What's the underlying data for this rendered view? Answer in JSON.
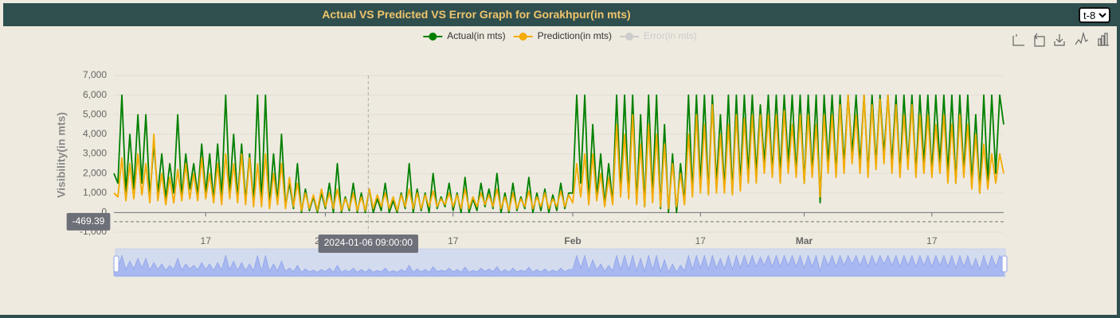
{
  "chart_data": {
    "type": "line",
    "title": "Actual VS Predicted VS Error Graph for Gorakhpur(in mts)",
    "y_label": "Visibility(in mts)",
    "selector": "t-8",
    "x": [
      "2023-12-05 12:00",
      "2023-12-06 00:00",
      "2023-12-06 12:00",
      "2023-12-07 00:00",
      "2023-12-07 12:00",
      "2023-12-08 00:00",
      "2023-12-08 12:00",
      "2023-12-09 00:00",
      "2023-12-09 12:00",
      "2023-12-10 00:00",
      "2023-12-10 12:00",
      "2023-12-11 00:00",
      "2023-12-11 12:00",
      "2023-12-12 00:00",
      "2023-12-12 12:00",
      "2023-12-13 00:00",
      "2023-12-13 12:00",
      "2023-12-14 00:00",
      "2023-12-14 12:00",
      "2023-12-15 00:00",
      "2023-12-15 12:00",
      "2023-12-16 00:00",
      "2023-12-16 12:00",
      "2023-12-17 00:00",
      "2023-12-17 12:00",
      "2023-12-18 00:00",
      "2023-12-18 12:00",
      "2023-12-19 00:00",
      "2023-12-19 12:00",
      "2023-12-20 00:00",
      "2023-12-20 12:00",
      "2023-12-21 00:00",
      "2023-12-21 12:00",
      "2023-12-22 00:00",
      "2023-12-22 12:00",
      "2023-12-23 00:00",
      "2023-12-23 12:00",
      "2023-12-24 00:00",
      "2023-12-24 12:00",
      "2023-12-25 00:00",
      "2023-12-25 12:00",
      "2023-12-26 00:00",
      "2023-12-26 12:00",
      "2023-12-27 00:00",
      "2023-12-27 12:00",
      "2023-12-28 00:00",
      "2023-12-28 12:00",
      "2023-12-29 00:00",
      "2023-12-29 12:00",
      "2023-12-30 00:00",
      "2023-12-30 12:00",
      "2023-12-31 00:00",
      "2023-12-31 12:00",
      "2024-01-01 00:00",
      "2024-01-01 12:00",
      "2024-01-02 00:00",
      "2024-01-02 12:00",
      "2024-01-03 00:00",
      "2024-01-03 12:00",
      "2024-01-04 00:00",
      "2024-01-04 12:00",
      "2024-01-05 00:00",
      "2024-01-05 12:00",
      "2024-01-06 00:00",
      "2024-01-06 12:00",
      "2024-01-07 00:00",
      "2024-01-07 12:00",
      "2024-01-08 00:00",
      "2024-01-08 12:00",
      "2024-01-09 00:00",
      "2024-01-09 12:00",
      "2024-01-10 00:00",
      "2024-01-10 12:00",
      "2024-01-11 00:00",
      "2024-01-11 12:00",
      "2024-01-12 00:00",
      "2024-01-12 12:00",
      "2024-01-13 00:00",
      "2024-01-13 12:00",
      "2024-01-14 00:00",
      "2024-01-14 12:00",
      "2024-01-15 00:00",
      "2024-01-15 12:00",
      "2024-01-16 00:00",
      "2024-01-16 12:00",
      "2024-01-17 00:00",
      "2024-01-17 12:00",
      "2024-01-18 00:00",
      "2024-01-18 12:00",
      "2024-01-19 00:00",
      "2024-01-19 12:00",
      "2024-01-20 00:00",
      "2024-01-20 12:00",
      "2024-01-21 00:00",
      "2024-01-21 12:00",
      "2024-01-22 00:00",
      "2024-01-22 12:00",
      "2024-01-23 00:00",
      "2024-01-23 12:00",
      "2024-01-24 00:00",
      "2024-01-24 12:00",
      "2024-01-25 00:00",
      "2024-01-25 12:00",
      "2024-01-26 00:00",
      "2024-01-26 12:00",
      "2024-01-27 00:00",
      "2024-01-27 12:00",
      "2024-01-28 00:00",
      "2024-01-28 12:00",
      "2024-01-29 00:00",
      "2024-01-29 12:00",
      "2024-01-30 00:00",
      "2024-01-30 12:00",
      "2024-01-31 00:00",
      "2024-01-31 12:00",
      "2024-02-01 00:00",
      "2024-02-01 12:00",
      "2024-02-02 00:00",
      "2024-02-02 12:00",
      "2024-02-03 00:00",
      "2024-02-03 12:00",
      "2024-02-04 00:00",
      "2024-02-04 12:00",
      "2024-02-05 00:00",
      "2024-02-05 12:00",
      "2024-02-06 00:00",
      "2024-02-06 12:00",
      "2024-02-07 00:00",
      "2024-02-07 12:00",
      "2024-02-08 00:00",
      "2024-02-08 12:00",
      "2024-02-09 00:00",
      "2024-02-09 12:00",
      "2024-02-10 00:00",
      "2024-02-10 12:00",
      "2024-02-11 00:00",
      "2024-02-11 12:00",
      "2024-02-12 00:00",
      "2024-02-12 12:00",
      "2024-02-13 00:00",
      "2024-02-13 12:00",
      "2024-02-14 00:00",
      "2024-02-14 12:00",
      "2024-02-15 00:00",
      "2024-02-15 12:00",
      "2024-02-16 00:00",
      "2024-02-16 12:00",
      "2024-02-17 00:00",
      "2024-02-17 12:00",
      "2024-02-18 00:00",
      "2024-02-18 12:00",
      "2024-02-19 00:00",
      "2024-02-19 12:00",
      "2024-02-20 00:00",
      "2024-02-20 12:00",
      "2024-02-21 00:00",
      "2024-02-21 12:00",
      "2024-02-22 00:00",
      "2024-02-22 12:00",
      "2024-02-23 00:00",
      "2024-02-23 12:00",
      "2024-02-24 00:00",
      "2024-02-24 12:00",
      "2024-02-25 00:00",
      "2024-02-25 12:00",
      "2024-02-26 00:00",
      "2024-02-26 12:00",
      "2024-02-27 00:00",
      "2024-02-27 12:00",
      "2024-02-28 00:00",
      "2024-02-28 12:00",
      "2024-02-29 00:00",
      "2024-02-29 12:00",
      "2024-03-01 00:00",
      "2024-03-01 12:00",
      "2024-03-02 00:00",
      "2024-03-02 12:00",
      "2024-03-03 00:00",
      "2024-03-03 12:00",
      "2024-03-04 00:00",
      "2024-03-04 12:00",
      "2024-03-05 00:00",
      "2024-03-05 12:00",
      "2024-03-06 00:00",
      "2024-03-06 12:00",
      "2024-03-07 00:00",
      "2024-03-07 12:00",
      "2024-03-08 00:00",
      "2024-03-08 12:00",
      "2024-03-09 00:00",
      "2024-03-09 12:00",
      "2024-03-10 00:00",
      "2024-03-10 12:00",
      "2024-03-11 00:00",
      "2024-03-11 12:00",
      "2024-03-12 00:00",
      "2024-03-12 12:00",
      "2024-03-13 00:00",
      "2024-03-13 12:00",
      "2024-03-14 00:00",
      "2024-03-14 12:00",
      "2024-03-15 00:00",
      "2024-03-15 12:00",
      "2024-03-16 00:00",
      "2024-03-16 12:00",
      "2024-03-17 00:00",
      "2024-03-17 12:00",
      "2024-03-18 00:00",
      "2024-03-18 12:00",
      "2024-03-19 00:00",
      "2024-03-19 12:00",
      "2024-03-20 00:00",
      "2024-03-20 12:00",
      "2024-03-21 00:00",
      "2024-03-21 12:00",
      "2024-03-22 00:00",
      "2024-03-22 12:00",
      "2024-03-23 00:00",
      "2024-03-23 12:00",
      "2024-03-24 00:00",
      "2024-03-24 12:00",
      "2024-03-25 00:00",
      "2024-03-25 12:00",
      "2024-03-26 00:00"
    ],
    "series": [
      {
        "name": "Actual(in mts)",
        "color": "#008000",
        "values": [
          2000,
          1500,
          6000,
          1000,
          4000,
          1200,
          5000,
          1500,
          5000,
          800,
          3500,
          1000,
          3000,
          700,
          2500,
          1000,
          5000,
          800,
          3000,
          1200,
          2500,
          900,
          3500,
          1000,
          3000,
          600,
          3500,
          800,
          6000,
          1000,
          4000,
          700,
          3500,
          600,
          3000,
          500,
          6000,
          400,
          6000,
          300,
          3000,
          500,
          4000,
          300,
          1500,
          200,
          2500,
          0,
          1200,
          100,
          800,
          0,
          1000,
          200,
          1500,
          0,
          2500,
          0,
          800,
          100,
          1500,
          0,
          1000,
          0,
          1200,
          0,
          700,
          100,
          1500,
          0,
          600,
          0,
          1000,
          200,
          2500,
          0,
          1200,
          100,
          1000,
          0,
          2000,
          200,
          800,
          300,
          1500,
          100,
          1000,
          0,
          1800,
          0,
          700,
          100,
          1500,
          300,
          1200,
          200,
          2000,
          0,
          1000,
          0,
          1500,
          100,
          800,
          200,
          1800,
          0,
          1000,
          100,
          1200,
          0,
          900,
          100,
          1500,
          200,
          1000,
          1000,
          6000,
          1500,
          6000,
          500,
          4500,
          800,
          3000,
          400,
          2500,
          500,
          6000,
          1000,
          6000,
          800,
          6000,
          500,
          5000,
          300,
          6000,
          800,
          6000,
          200,
          4500,
          0,
          3000,
          0,
          2500,
          500,
          6000,
          1000,
          6000,
          1500,
          6000,
          1000,
          6000,
          1500,
          5000,
          1200,
          6000,
          1000,
          6000,
          1500,
          6000,
          2000,
          6000,
          2000,
          5500,
          2500,
          6000,
          2000,
          6000,
          2000,
          6000,
          2500,
          6000,
          2000,
          6000,
          1500,
          6000,
          2000,
          6000,
          500,
          6000,
          2500,
          6000,
          2000,
          6000,
          2500,
          6000,
          3000,
          6000,
          2500,
          6000,
          2000,
          6000,
          2500,
          6000,
          3000,
          6000,
          2500,
          6000,
          2000,
          6000,
          2500,
          6000,
          2000,
          6000,
          2500,
          6000,
          2000,
          6000,
          2500,
          6000,
          2000,
          6000,
          1500,
          6000,
          2000,
          6000,
          1500,
          5000,
          1000,
          6000,
          1500,
          6000,
          2000,
          6000,
          4500
        ]
      },
      {
        "name": "Prediction(in mts)",
        "color": "#f5ab00",
        "values": [
          1000,
          800,
          2800,
          600,
          2500,
          700,
          3000,
          900,
          2500,
          500,
          4000,
          600,
          2000,
          400,
          1800,
          500,
          2200,
          600,
          2500,
          700,
          2000,
          600,
          2800,
          700,
          2000,
          500,
          2500,
          400,
          3000,
          700,
          2500,
          500,
          3000,
          400,
          2800,
          300,
          2500,
          300,
          3000,
          200,
          2000,
          400,
          2500,
          200,
          1800,
          300,
          1500,
          100,
          1000,
          200,
          900,
          100,
          1200,
          300,
          1000,
          200,
          1200,
          100,
          700,
          200,
          1000,
          100,
          800,
          100,
          1200,
          200,
          900,
          300,
          1000,
          200,
          800,
          100,
          900,
          300,
          1200,
          200,
          1000,
          200,
          900,
          300,
          1100,
          300,
          700,
          400,
          1000,
          300,
          900,
          200,
          1200,
          200,
          800,
          300,
          1000,
          400,
          900,
          300,
          1200,
          200,
          800,
          100,
          1000,
          200,
          700,
          300,
          1100,
          200,
          800,
          300,
          1000,
          200,
          700,
          300,
          1100,
          300,
          900,
          500,
          2500,
          800,
          3000,
          400,
          3000,
          600,
          2000,
          300,
          1800,
          400,
          4500,
          800,
          4000,
          700,
          5000,
          400,
          3500,
          300,
          4500,
          500,
          4000,
          300,
          3500,
          200,
          2500,
          300,
          2000,
          400,
          4000,
          800,
          5000,
          1000,
          4500,
          900,
          5500,
          1000,
          4000,
          1000,
          4500,
          900,
          5000,
          1100,
          4800,
          1500,
          5000,
          1500,
          5000,
          2000,
          5000,
          1800,
          5000,
          1500,
          5200,
          2000,
          4500,
          1800,
          5000,
          1500,
          5000,
          1800,
          4500,
          800,
          5000,
          2000,
          5000,
          1800,
          5500,
          2000,
          6000,
          2500,
          5000,
          2000,
          6000,
          1800,
          5500,
          2200,
          5800,
          2500,
          6000,
          2000,
          5500,
          1800,
          5000,
          2200,
          5500,
          1800,
          5000,
          2000,
          5000,
          1800,
          4500,
          2000,
          5000,
          1500,
          4500,
          1500,
          5000,
          1800,
          4500,
          1200,
          4000,
          1000,
          3500,
          1200,
          3000,
          1500,
          3000,
          2000
        ]
      },
      {
        "name": "Error(in mts)",
        "color": "#cccccc",
        "visible": false
      }
    ],
    "xlim": [
      "2023-12-05 12:00",
      "2024-03-26 00:00"
    ],
    "xticks": [
      {
        "value": "2023-12-17 00:00",
        "label": "17"
      },
      {
        "value": "2024-01-01 00:00",
        "label": "2024"
      },
      {
        "value": "2024-01-17 00:00",
        "label": "17"
      },
      {
        "value": "2024-02-01 00:00",
        "label": "Feb"
      },
      {
        "value": "2024-02-17 00:00",
        "label": "17"
      },
      {
        "value": "2024-03-01 00:00",
        "label": "Mar"
      },
      {
        "value": "2024-03-17 00:00",
        "label": "17"
      }
    ],
    "ylim": [
      -1000,
      7000
    ],
    "yticks": [
      {
        "value": -1000,
        "label": "-1,000"
      },
      0,
      {
        "value": 1000,
        "label": "1,000"
      },
      {
        "value": 2000,
        "label": "2,000"
      },
      {
        "value": 3000,
        "label": "3,000"
      },
      {
        "value": 4000,
        "label": "4,000"
      },
      {
        "value": 5000,
        "label": "5,000"
      },
      {
        "value": 6000,
        "label": "6,000"
      },
      {
        "value": 7000,
        "label": "7,000"
      }
    ],
    "grid": true,
    "crosshair": {
      "x_label": "2024-01-06 09:00:00",
      "y_value": -469.39
    }
  }
}
